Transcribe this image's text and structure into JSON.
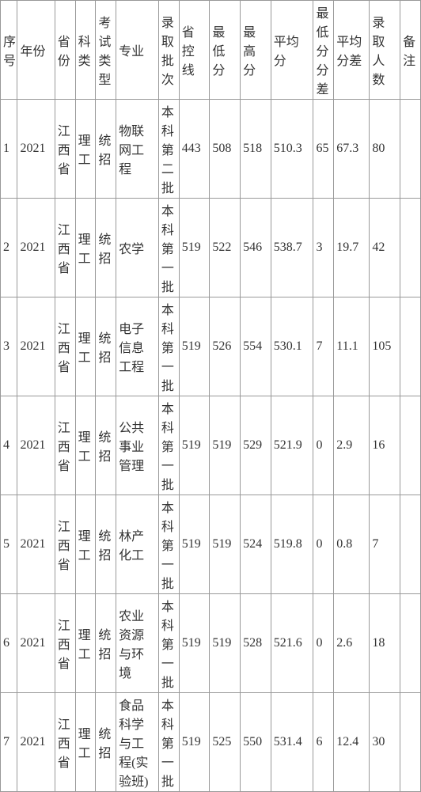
{
  "headers": {
    "seq": "序号",
    "year": "年份",
    "province": "省份",
    "subject": "科类",
    "examType": "考试类型",
    "major": "专业",
    "batch": "录取批次",
    "ctrlLine": "省控线",
    "minScore": "最低分",
    "maxScore": "最高分",
    "avgScore": "平均分",
    "minDiff": "最低分分差",
    "avgDiff": "平均分差",
    "count": "录取人数",
    "note": "备注"
  },
  "rows": [
    {
      "seq": "1",
      "year": "2021",
      "province": "江西省",
      "subject": "理工",
      "examType": "统招",
      "major": "物联网工程",
      "batch": "本科第二批",
      "ctrlLine": "443",
      "minScore": "508",
      "maxScore": "518",
      "avgScore": "510.3",
      "minDiff": "65",
      "avgDiff": "67.3",
      "count": "80",
      "note": ""
    },
    {
      "seq": "2",
      "year": "2021",
      "province": "江西省",
      "subject": "理工",
      "examType": "统招",
      "major": "农学",
      "batch": "本科第一批",
      "ctrlLine": "519",
      "minScore": "522",
      "maxScore": "546",
      "avgScore": "538.7",
      "minDiff": "3",
      "avgDiff": "19.7",
      "count": "42",
      "note": ""
    },
    {
      "seq": "3",
      "year": "2021",
      "province": "江西省",
      "subject": "理工",
      "examType": "统招",
      "major": "电子信息工程",
      "batch": "本科第一批",
      "ctrlLine": "519",
      "minScore": "526",
      "maxScore": "554",
      "avgScore": "530.1",
      "minDiff": "7",
      "avgDiff": "11.1",
      "count": "105",
      "note": ""
    },
    {
      "seq": "4",
      "year": "2021",
      "province": "江西省",
      "subject": "理工",
      "examType": "统招",
      "major": "公共事业管理",
      "batch": "本科第一批",
      "ctrlLine": "519",
      "minScore": "519",
      "maxScore": "529",
      "avgScore": "521.9",
      "minDiff": "0",
      "avgDiff": "2.9",
      "count": "16",
      "note": ""
    },
    {
      "seq": "5",
      "year": "2021",
      "province": "江西省",
      "subject": "理工",
      "examType": "统招",
      "major": "林产化工",
      "batch": "本科第一批",
      "ctrlLine": "519",
      "minScore": "519",
      "maxScore": "524",
      "avgScore": "519.8",
      "minDiff": "0",
      "avgDiff": "0.8",
      "count": "7",
      "note": ""
    },
    {
      "seq": "6",
      "year": "2021",
      "province": "江西省",
      "subject": "理工",
      "examType": "统招",
      "major": "农业资源与环境",
      "batch": "本科第一批",
      "ctrlLine": "519",
      "minScore": "519",
      "maxScore": "528",
      "avgScore": "521.6",
      "minDiff": "0",
      "avgDiff": "2.6",
      "count": "18",
      "note": ""
    },
    {
      "seq": "7",
      "year": "2021",
      "province": "江西省",
      "subject": "理工",
      "examType": "统招",
      "major": "食品科学与工程(实验班)",
      "batch": "本科第一批",
      "ctrlLine": "519",
      "minScore": "525",
      "maxScore": "550",
      "avgScore": "531.4",
      "minDiff": "6",
      "avgDiff": "12.4",
      "count": "30",
      "note": ""
    }
  ]
}
